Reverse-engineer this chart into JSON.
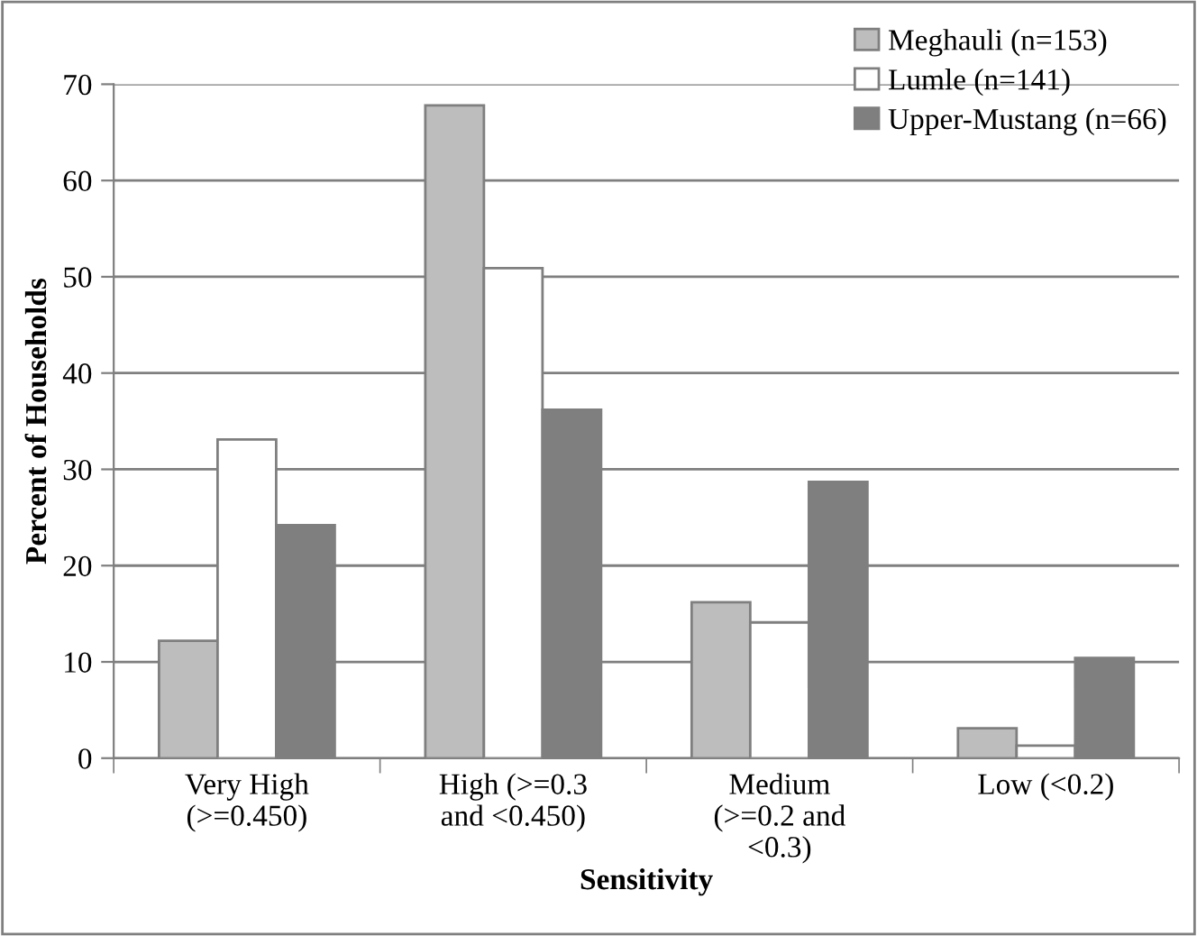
{
  "chart_data": {
    "type": "bar",
    "xlabel": "Sensitivity",
    "ylabel": "Percent of Households",
    "categories": [
      "Very High\n(>=0.450)",
      "High (>=0.3\nand <0.450)",
      "Medium\n(>=0.2 and\n<0.3)",
      "Low (<0.2)"
    ],
    "series": [
      {
        "name": "Meghauli (n=153)",
        "color": "#bdbdbd",
        "values": [
          12.2,
          67.8,
          16.2,
          3.1
        ]
      },
      {
        "name": "Lumle (n=141)",
        "color": "#ffffff",
        "values": [
          33.1,
          50.9,
          14.1,
          1.3
        ]
      },
      {
        "name": "Upper-Mustang (n=66)",
        "color": "#7f7f7f",
        "values": [
          24.2,
          36.2,
          28.7,
          10.4
        ]
      }
    ],
    "ylim": [
      0,
      70
    ],
    "yticks": [
      0,
      10,
      20,
      30,
      40,
      50,
      60,
      70
    ],
    "grid": "y",
    "legend": "top right"
  }
}
